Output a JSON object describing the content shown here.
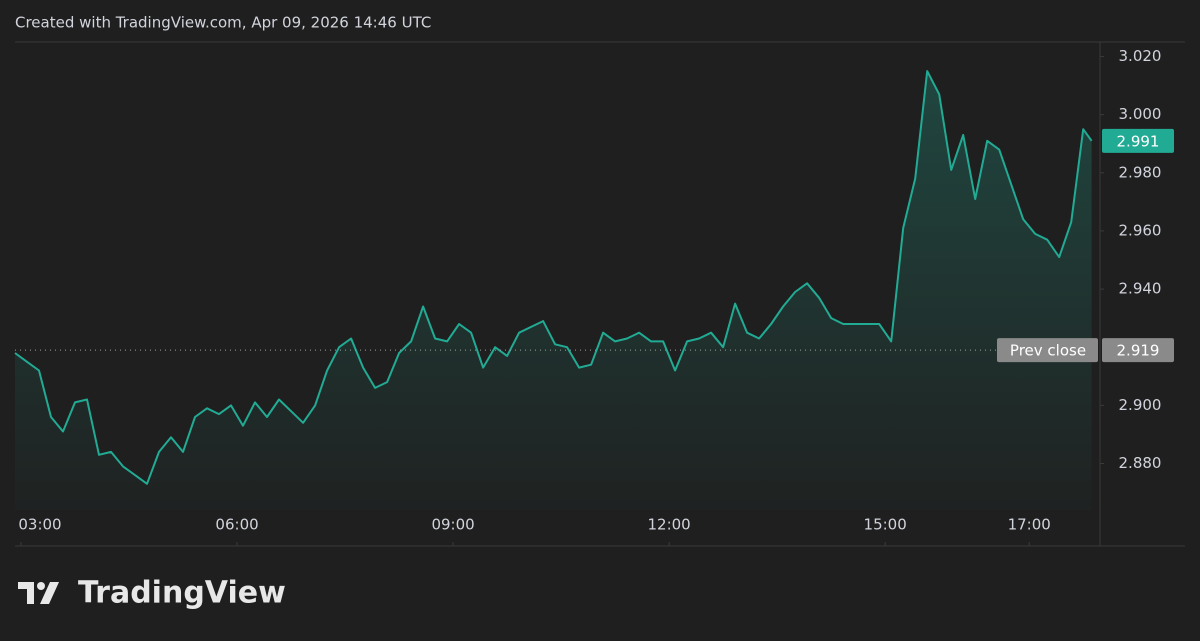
{
  "chart_data": {
    "type": "area",
    "caption": "Created with TradingView.com, Apr 09, 2026 14:46 UTC",
    "brand": "TradingView",
    "x": [
      "02:55",
      "03:05",
      "03:15",
      "03:25",
      "03:35",
      "03:45",
      "03:55",
      "04:05",
      "04:15",
      "04:25",
      "04:35",
      "04:45",
      "04:55",
      "05:05",
      "05:15",
      "05:25",
      "05:35",
      "05:45",
      "05:55",
      "06:05",
      "06:15",
      "06:25",
      "06:35",
      "06:45",
      "06:55",
      "07:05",
      "07:15",
      "07:25",
      "07:35",
      "07:45",
      "07:55",
      "08:05",
      "08:15",
      "08:25",
      "08:35",
      "08:45",
      "08:55",
      "09:05",
      "09:15",
      "09:25",
      "09:35",
      "09:45",
      "09:55",
      "10:05",
      "10:15",
      "10:25",
      "10:35",
      "10:45",
      "10:55",
      "11:05",
      "11:15",
      "11:25",
      "11:35",
      "11:45",
      "11:55",
      "12:05",
      "12:15",
      "12:25",
      "12:35",
      "12:45",
      "12:55",
      "13:05",
      "13:15",
      "13:25",
      "13:35",
      "13:45",
      "13:55",
      "14:05",
      "14:15",
      "14:25",
      "14:35",
      "14:45",
      "14:55",
      "15:05",
      "15:15",
      "15:25",
      "15:35",
      "15:45",
      "15:55",
      "16:05",
      "16:15",
      "16:25",
      "16:35",
      "16:45",
      "16:55",
      "17:05",
      "17:15",
      "17:25",
      "17:35",
      "17:45",
      "17:52"
    ],
    "series": [
      {
        "color": "#22ab94",
        "values": [
          2.918,
          2.915,
          2.912,
          2.896,
          2.891,
          2.901,
          2.902,
          2.883,
          2.884,
          2.879,
          2.876,
          2.873,
          2.884,
          2.889,
          2.884,
          2.896,
          2.899,
          2.897,
          2.9,
          2.893,
          2.901,
          2.896,
          2.902,
          2.898,
          2.894,
          2.9,
          2.912,
          2.92,
          2.923,
          2.913,
          2.906,
          2.908,
          2.918,
          2.922,
          2.934,
          2.923,
          2.922,
          2.928,
          2.925,
          2.913,
          2.92,
          2.917,
          2.925,
          2.927,
          2.929,
          2.921,
          2.92,
          2.913,
          2.914,
          2.925,
          2.922,
          2.923,
          2.925,
          2.922,
          2.922,
          2.912,
          2.922,
          2.923,
          2.925,
          2.92,
          2.935,
          2.925,
          2.923,
          2.928,
          2.934,
          2.939,
          2.942,
          2.937,
          2.93,
          2.928,
          2.928,
          2.928,
          2.928,
          2.922,
          2.961,
          2.978,
          3.015,
          3.007,
          2.981,
          2.993,
          2.971,
          2.991,
          2.988,
          2.976,
          2.964,
          2.959,
          2.957,
          2.951,
          2.963,
          2.995,
          2.991
        ]
      }
    ],
    "prev_close": 2.919,
    "prev_close_label": "Prev close",
    "xlim": [
      "02:55",
      "17:59"
    ],
    "xticks": [
      "03:00",
      "06:00",
      "09:00",
      "12:00",
      "15:00",
      "17:00"
    ],
    "ylim": [
      2.864,
      3.025
    ],
    "yticks": [
      {
        "value": 2.88,
        "label": "2.880"
      },
      {
        "value": 2.9,
        "label": "2.900"
      },
      {
        "value": 2.94,
        "label": "2.940"
      },
      {
        "value": 2.96,
        "label": "2.960"
      },
      {
        "value": 2.98,
        "label": "2.980"
      },
      {
        "value": 3.0,
        "label": "3.000"
      },
      {
        "value": 3.02,
        "label": "3.020"
      }
    ]
  }
}
